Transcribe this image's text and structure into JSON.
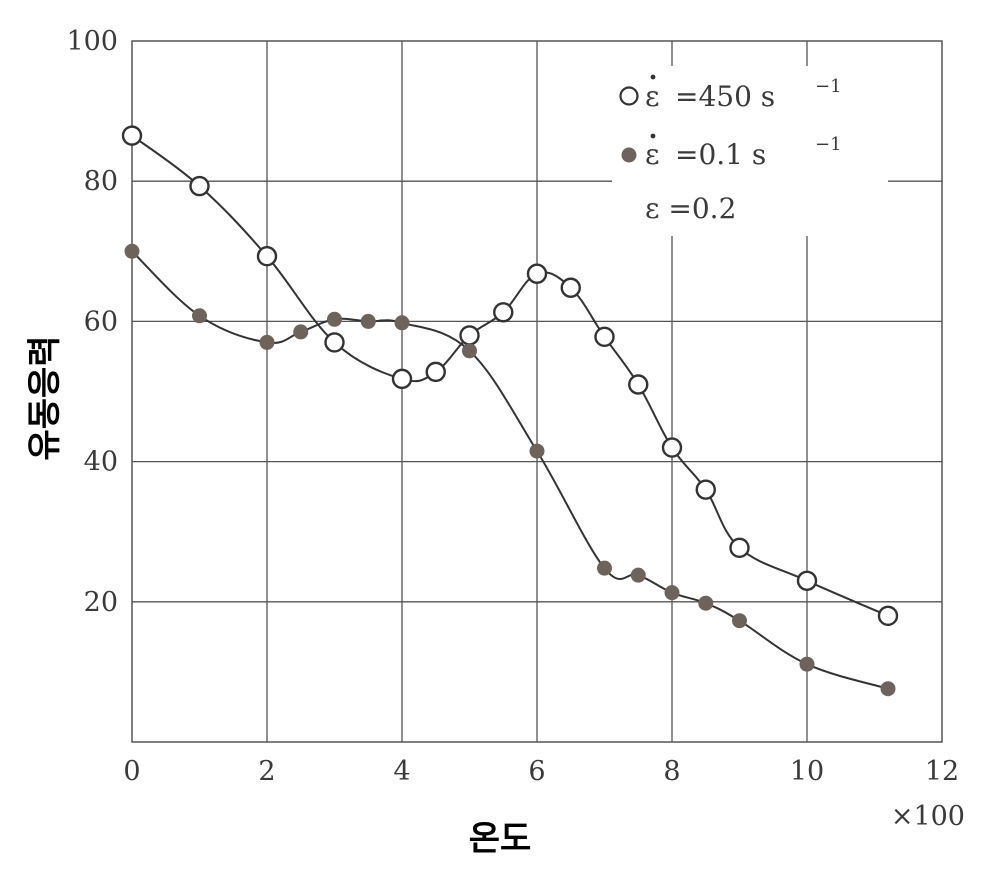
{
  "chart_data": {
    "type": "line",
    "xlabel": "온도",
    "ylabel": "유동응력",
    "x_multiplier_label": "×100",
    "xlim": [
      0,
      12
    ],
    "ylim": [
      0,
      100
    ],
    "x_ticks": [
      "0",
      "2",
      "4",
      "6",
      "8",
      "10",
      "12"
    ],
    "y_ticks": [
      "20",
      "40",
      "60",
      "80",
      "100"
    ],
    "grid": true,
    "legend_position": "top-right",
    "legend": {
      "entries": [
        {
          "eps_symbol": "ε",
          "text": "=450  s",
          "exponent": "−1"
        },
        {
          "eps_symbol": "ε",
          "text": "=0.1   s",
          "exponent": "−1"
        }
      ],
      "note": "ε =0.2"
    },
    "colors": {
      "open_marker_fill": "#ffffff",
      "filled_marker": "#6e625c",
      "line": "#333333",
      "grid": "#555555"
    },
    "series": [
      {
        "marker": "open",
        "x": [
          0,
          1,
          2,
          3,
          4,
          4.5,
          5,
          5.5,
          6,
          6.5,
          7,
          7.5,
          8,
          8.5,
          9,
          10,
          11.2
        ],
        "y": [
          86.5,
          79.3,
          69.3,
          57,
          51.8,
          52.8,
          58,
          61.3,
          66.8,
          64.8,
          57.8,
          51,
          42,
          36,
          27.7,
          23,
          18
        ]
      },
      {
        "marker": "filled",
        "x": [
          0,
          1,
          2,
          2.5,
          3,
          3.5,
          4,
          5,
          6,
          7,
          7.5,
          8,
          8.5,
          9,
          10,
          11.2
        ],
        "y": [
          70,
          60.8,
          57,
          58.5,
          60.3,
          60,
          59.8,
          55.8,
          41.5,
          24.8,
          23.8,
          21.3,
          19.8,
          17.3,
          11.1,
          7.6
        ]
      }
    ]
  }
}
